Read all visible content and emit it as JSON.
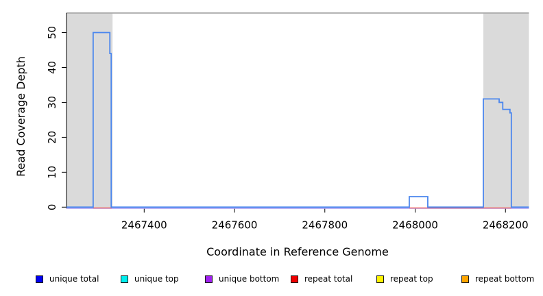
{
  "chart_data": {
    "type": "line",
    "title": "",
    "xlabel": "Coordinate in Reference Genome",
    "ylabel": "Read Coverage Depth",
    "xlim": [
      2467228,
      2468252
    ],
    "ylim": [
      0,
      55.6
    ],
    "x_ticks": [
      2467400,
      2467600,
      2467800,
      2468000,
      2468200
    ],
    "y_ticks": [
      0,
      10,
      20,
      30,
      40,
      50
    ],
    "grid": false,
    "legend_position": "bottom",
    "colors": {
      "axis": "#000000",
      "top_border": "#9a9a9a",
      "shaded_region": "#dadada",
      "unique_total_line": "#4a86ee",
      "unique_bottom_line": "#a99cf2",
      "repeat_total_line": "#ee6464"
    },
    "shaded_regions": [
      {
        "x0": 2467228,
        "x1": 2467330
      },
      {
        "x0": 2468151,
        "x1": 2468252
      }
    ],
    "series": [
      {
        "name": "unique total",
        "color_key": "unique_total_line",
        "step_vertices": [
          [
            2467228,
            0
          ],
          [
            2467287,
            0
          ],
          [
            2467287,
            50
          ],
          [
            2467324,
            50
          ],
          [
            2467324,
            44
          ],
          [
            2467327,
            44
          ],
          [
            2467327,
            0
          ],
          [
            2467987,
            0
          ],
          [
            2467987,
            3
          ],
          [
            2468028,
            3
          ],
          [
            2468028,
            0
          ],
          [
            2468151,
            0
          ],
          [
            2468151,
            31
          ],
          [
            2468186,
            31
          ],
          [
            2468186,
            30
          ],
          [
            2468194,
            30
          ],
          [
            2468194,
            28
          ],
          [
            2468210,
            28
          ],
          [
            2468210,
            27
          ],
          [
            2468213,
            27
          ],
          [
            2468213,
            0
          ],
          [
            2468252,
            0
          ]
        ]
      },
      {
        "name": "unique bottom",
        "color_key": "unique_bottom_line",
        "step_vertices": [
          [
            2467228,
            0
          ],
          [
            2468252,
            0
          ]
        ]
      },
      {
        "name": "repeat total",
        "color_key": "repeat_total_line",
        "zero_segments": [
          [
            2467287,
            2467328
          ],
          [
            2467987,
            2468213
          ]
        ]
      }
    ]
  },
  "legend": {
    "items": [
      {
        "label": "unique total",
        "color": "#0000f0"
      },
      {
        "label": "unique top",
        "color": "#00eeee"
      },
      {
        "label": "unique bottom",
        "color": "#a020f0"
      },
      {
        "label": "repeat total",
        "color": "#ee0000"
      },
      {
        "label": "repeat top",
        "color": "#fff200"
      },
      {
        "label": "repeat bottom",
        "color": "#ffa500"
      }
    ]
  }
}
